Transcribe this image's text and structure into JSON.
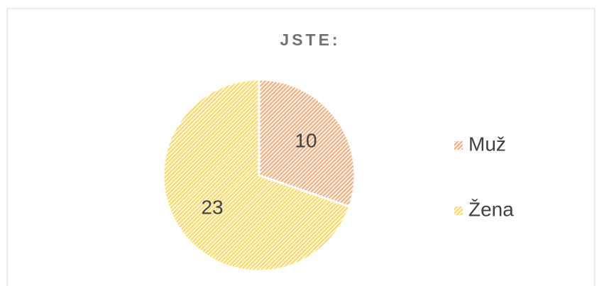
{
  "chart_data": {
    "type": "pie",
    "title": "JSTE:",
    "categories": [
      "Muž",
      "Žena"
    ],
    "values": [
      10,
      23
    ],
    "colors": [
      "#f4b183",
      "#ffd966"
    ],
    "legend": "right"
  }
}
